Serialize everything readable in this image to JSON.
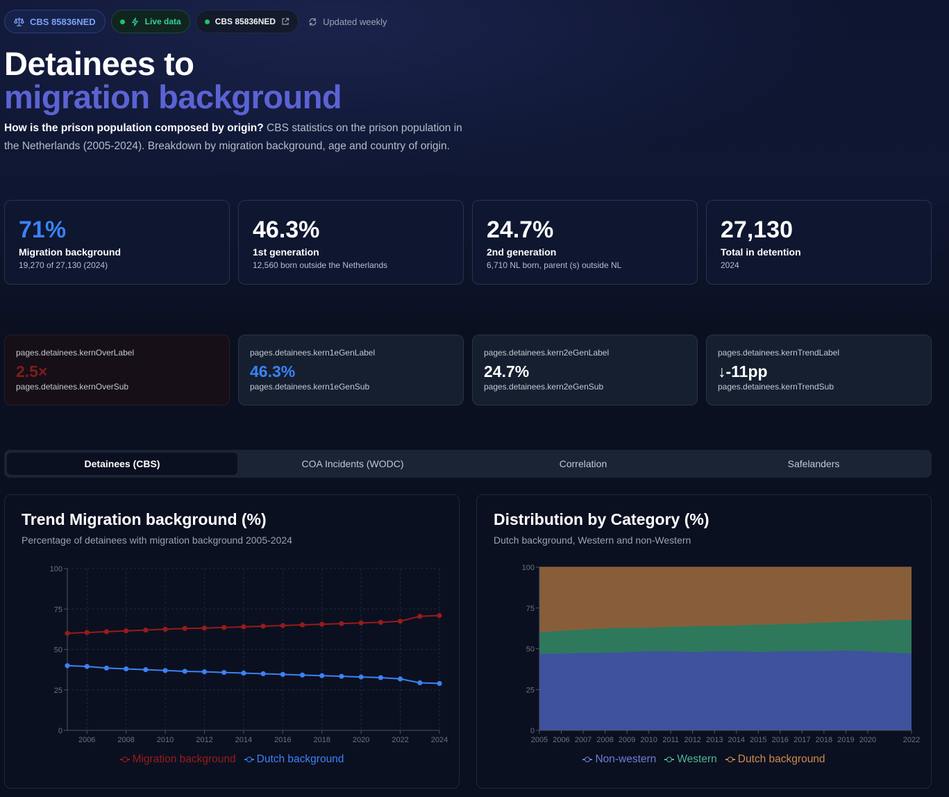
{
  "header": {
    "dataset_badge": "CBS 85836NED",
    "live_badge": "Live data",
    "source_badge": "CBS 85836NED",
    "update_text": "Updated weekly",
    "title_line1": "Detainees to",
    "title_line2": "migration background",
    "intro_bold": "How is the prison population composed by origin?",
    "intro_text": " CBS statistics on the prison population in the Netherlands (2005-2024). Breakdown by migration background, age and country of origin."
  },
  "kpis": [
    {
      "value": "71%",
      "label": "Migration background",
      "sub": "19,270 of 27,130 (2024)"
    },
    {
      "value": "46.3%",
      "label": "1st generation",
      "sub": "12,560 born outside the Netherlands"
    },
    {
      "value": "24.7%",
      "label": "2nd generation",
      "sub": "6,710 NL born, parent (s) outside NL"
    },
    {
      "value": "27,130",
      "label": "Total in detention",
      "sub": "2024"
    }
  ],
  "kern": [
    {
      "label": "pages.detainees.kernOverLabel",
      "value": "2.5×",
      "sub": "pages.detainees.kernOverSub"
    },
    {
      "label": "pages.detainees.kern1eGenLabel",
      "value": "46.3%",
      "sub": "pages.detainees.kern1eGenSub"
    },
    {
      "label": "pages.detainees.kern2eGenLabel",
      "value": "24.7%",
      "sub": "pages.detainees.kern2eGenSub"
    },
    {
      "label": "pages.detainees.kernTrendLabel",
      "value": "↓-11pp",
      "sub": "pages.detainees.kernTrendSub"
    }
  ],
  "tabs": [
    {
      "label": "Detainees (CBS)",
      "active": true
    },
    {
      "label": "COA Incidents (WODC)",
      "active": false
    },
    {
      "label": "Correlation",
      "active": false
    },
    {
      "label": "Safelanders",
      "active": false
    }
  ],
  "colors": {
    "migration": "#991b1b",
    "dutch": "#3b82f6",
    "non_western": "#3f54a1",
    "western": "#2f7a5e",
    "dutch_area": "#8a603a"
  },
  "chart_data": [
    {
      "type": "line",
      "title": "Trend Migration background (%)",
      "subtitle": "Percentage of detainees with migration background 2005-2024",
      "x": [
        2005,
        2006,
        2007,
        2008,
        2009,
        2010,
        2011,
        2012,
        2013,
        2014,
        2015,
        2016,
        2017,
        2018,
        2019,
        2020,
        2021,
        2022,
        2023,
        2024
      ],
      "x_ticks": [
        2006,
        2008,
        2010,
        2012,
        2014,
        2016,
        2018,
        2020,
        2022,
        2024
      ],
      "ylim": [
        0,
        100
      ],
      "y_ticks": [
        0,
        25,
        50,
        75,
        100
      ],
      "grid": true,
      "legend": "bottom",
      "series": [
        {
          "name": "Migration background",
          "color": "#991b1b",
          "values": [
            60,
            60.5,
            61,
            61.5,
            62,
            62.5,
            63,
            63.2,
            63.6,
            64,
            64.4,
            64.8,
            65.2,
            65.6,
            66,
            66.4,
            66.8,
            67.5,
            70.5,
            71
          ]
        },
        {
          "name": "Dutch background",
          "color": "#3b82f6",
          "values": [
            40,
            39.5,
            38.5,
            38,
            37.5,
            37,
            36.5,
            36.2,
            35.8,
            35.4,
            35,
            34.6,
            34.2,
            33.8,
            33.4,
            33,
            32.6,
            31.8,
            29.4,
            29
          ]
        }
      ]
    },
    {
      "type": "area",
      "title": "Distribution by Category (%)",
      "subtitle": "Dutch background, Western and non-Western",
      "x": [
        2005,
        2006,
        2007,
        2008,
        2009,
        2010,
        2011,
        2012,
        2013,
        2014,
        2015,
        2016,
        2017,
        2018,
        2019,
        2020,
        2022
      ],
      "ylim": [
        0,
        100
      ],
      "y_ticks": [
        0,
        25,
        50,
        75,
        100
      ],
      "stacked": true,
      "legend": "bottom",
      "series": [
        {
          "name": "Non-western",
          "color": "#3f54a1",
          "values": [
            47,
            47,
            47.5,
            47.5,
            48,
            48.5,
            48.5,
            48,
            48.5,
            48.5,
            48,
            48.5,
            48.5,
            48.5,
            49,
            48.5,
            47
          ]
        },
        {
          "name": "Western",
          "color": "#2f7a5e",
          "values": [
            13,
            14,
            14.3,
            15,
            14.8,
            14.5,
            15,
            15.8,
            15.5,
            15.8,
            16.8,
            16.5,
            17,
            17.5,
            17.5,
            18.5,
            21
          ]
        },
        {
          "name": "Dutch background",
          "color": "#8a603a",
          "values": [
            40,
            39,
            38.2,
            37.5,
            37.2,
            37,
            36.5,
            36.2,
            36,
            35.7,
            35.2,
            35,
            34.5,
            34,
            33.5,
            33,
            32
          ]
        }
      ]
    }
  ]
}
